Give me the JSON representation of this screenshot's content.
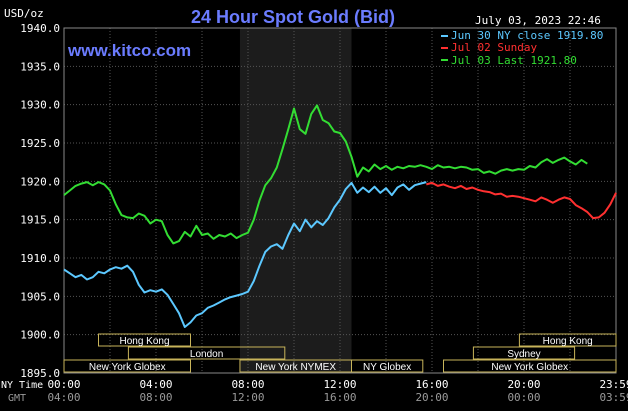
{
  "site_url": "www.kitco.com",
  "chart_data": {
    "type": "line",
    "title": "24 Hour Spot Gold (Bid)",
    "timestamp": "July 03, 2023 22:46",
    "y_unit_label": "USD/oz",
    "ylim": [
      1895.0,
      1940.0
    ],
    "y_ticks": [
      "1940.0",
      "1935.0",
      "1930.0",
      "1925.0",
      "1920.0",
      "1915.0",
      "1910.0",
      "1905.0",
      "1900.0",
      "1895.0"
    ],
    "x_range_hours": [
      0,
      24
    ],
    "x_row_labels": {
      "primary": "NY Time",
      "secondary": "GMT"
    },
    "x_ticks": [
      {
        "hour": 0,
        "ny": "00:00",
        "gmt": "04:00"
      },
      {
        "hour": 4,
        "ny": "04:00",
        "gmt": "08:00"
      },
      {
        "hour": 8,
        "ny": "08:00",
        "gmt": "12:00"
      },
      {
        "hour": 12,
        "ny": "12:00",
        "gmt": "16:00"
      },
      {
        "hour": 16,
        "ny": "16:00",
        "gmt": "20:00"
      },
      {
        "hour": 20,
        "ny": "20:00",
        "gmt": "00:00"
      },
      {
        "hour": 24,
        "ny": "23:59",
        "gmt": "03:59"
      }
    ],
    "grid": true,
    "legend_position": "top-right",
    "highlight_band_hours": [
      7.65,
      12.5
    ],
    "series": [
      {
        "name": "Jun 30 NY close 1919.80",
        "color": "#5cc8ff",
        "points": [
          [
            0,
            1908.5
          ],
          [
            0.25,
            1908.0
          ],
          [
            0.5,
            1907.5
          ],
          [
            0.75,
            1907.8
          ],
          [
            1.0,
            1907.2
          ],
          [
            1.25,
            1907.5
          ],
          [
            1.5,
            1908.2
          ],
          [
            1.75,
            1908.0
          ],
          [
            2.0,
            1908.5
          ],
          [
            2.25,
            1908.8
          ],
          [
            2.5,
            1908.6
          ],
          [
            2.75,
            1909.0
          ],
          [
            3.0,
            1908.2
          ],
          [
            3.25,
            1906.5
          ],
          [
            3.5,
            1905.5
          ],
          [
            3.75,
            1905.8
          ],
          [
            4.0,
            1905.6
          ],
          [
            4.25,
            1905.9
          ],
          [
            4.5,
            1905.2
          ],
          [
            4.75,
            1904.0
          ],
          [
            5.0,
            1902.8
          ],
          [
            5.25,
            1901.0
          ],
          [
            5.5,
            1901.6
          ],
          [
            5.75,
            1902.5
          ],
          [
            6.0,
            1902.8
          ],
          [
            6.25,
            1903.5
          ],
          [
            6.5,
            1903.8
          ],
          [
            6.75,
            1904.2
          ],
          [
            7.0,
            1904.6
          ],
          [
            7.25,
            1904.9
          ],
          [
            7.5,
            1905.1
          ],
          [
            7.75,
            1905.3
          ],
          [
            8.0,
            1905.6
          ],
          [
            8.25,
            1907.0
          ],
          [
            8.5,
            1909.0
          ],
          [
            8.75,
            1910.8
          ],
          [
            9.0,
            1911.5
          ],
          [
            9.25,
            1911.8
          ],
          [
            9.5,
            1911.2
          ],
          [
            9.75,
            1913.0
          ],
          [
            10.0,
            1914.5
          ],
          [
            10.25,
            1913.5
          ],
          [
            10.5,
            1915.0
          ],
          [
            10.75,
            1914.0
          ],
          [
            11.0,
            1914.8
          ],
          [
            11.25,
            1914.3
          ],
          [
            11.5,
            1915.2
          ],
          [
            11.75,
            1916.6
          ],
          [
            12.0,
            1917.6
          ],
          [
            12.25,
            1919.0
          ],
          [
            12.5,
            1919.8
          ],
          [
            12.75,
            1918.5
          ],
          [
            13.0,
            1919.2
          ],
          [
            13.25,
            1918.6
          ],
          [
            13.5,
            1919.3
          ],
          [
            13.75,
            1918.5
          ],
          [
            14.0,
            1919.1
          ],
          [
            14.25,
            1918.2
          ],
          [
            14.5,
            1919.2
          ],
          [
            14.75,
            1919.6
          ],
          [
            15.0,
            1918.9
          ],
          [
            15.25,
            1919.5
          ],
          [
            15.5,
            1919.7
          ],
          [
            15.75,
            1919.9
          ]
        ]
      },
      {
        "name": "Jul 02 Sunday",
        "color": "#ff3030",
        "points": [
          [
            15.75,
            1919.6
          ],
          [
            16.0,
            1919.8
          ],
          [
            16.25,
            1919.4
          ],
          [
            16.5,
            1919.6
          ],
          [
            16.75,
            1919.3
          ],
          [
            17.0,
            1919.1
          ],
          [
            17.25,
            1919.4
          ],
          [
            17.5,
            1919.0
          ],
          [
            17.75,
            1919.2
          ],
          [
            18.0,
            1918.9
          ],
          [
            18.25,
            1918.7
          ],
          [
            18.5,
            1918.6
          ],
          [
            18.75,
            1918.3
          ],
          [
            19.0,
            1918.4
          ],
          [
            19.25,
            1918.0
          ],
          [
            19.5,
            1918.1
          ],
          [
            19.75,
            1918.0
          ],
          [
            20.0,
            1917.8
          ],
          [
            20.25,
            1917.6
          ],
          [
            20.5,
            1917.4
          ],
          [
            20.75,
            1917.9
          ],
          [
            21.0,
            1917.6
          ],
          [
            21.25,
            1917.2
          ],
          [
            21.5,
            1917.6
          ],
          [
            21.75,
            1917.9
          ],
          [
            22.0,
            1917.7
          ],
          [
            22.25,
            1916.9
          ],
          [
            22.5,
            1916.5
          ],
          [
            22.75,
            1916.0
          ],
          [
            23.0,
            1915.2
          ],
          [
            23.25,
            1915.3
          ],
          [
            23.5,
            1915.9
          ],
          [
            23.75,
            1917.0
          ],
          [
            24.0,
            1918.5
          ]
        ]
      },
      {
        "name": "Jul 03 Last 1921.80",
        "color": "#33dd33",
        "points": [
          [
            0,
            1918.2
          ],
          [
            0.25,
            1918.8
          ],
          [
            0.5,
            1919.4
          ],
          [
            0.75,
            1919.7
          ],
          [
            1.0,
            1919.9
          ],
          [
            1.25,
            1919.5
          ],
          [
            1.5,
            1919.9
          ],
          [
            1.75,
            1919.6
          ],
          [
            2.0,
            1918.8
          ],
          [
            2.25,
            1917.0
          ],
          [
            2.5,
            1915.6
          ],
          [
            2.75,
            1915.3
          ],
          [
            3.0,
            1915.2
          ],
          [
            3.25,
            1915.8
          ],
          [
            3.5,
            1915.5
          ],
          [
            3.75,
            1914.5
          ],
          [
            4.0,
            1915.0
          ],
          [
            4.25,
            1914.8
          ],
          [
            4.5,
            1913.0
          ],
          [
            4.75,
            1911.9
          ],
          [
            5.0,
            1912.2
          ],
          [
            5.25,
            1913.4
          ],
          [
            5.5,
            1912.8
          ],
          [
            5.75,
            1914.2
          ],
          [
            6.0,
            1913.0
          ],
          [
            6.25,
            1913.2
          ],
          [
            6.5,
            1912.5
          ],
          [
            6.75,
            1913.0
          ],
          [
            7.0,
            1912.8
          ],
          [
            7.25,
            1913.2
          ],
          [
            7.5,
            1912.6
          ],
          [
            7.75,
            1913.0
          ],
          [
            8.0,
            1913.3
          ],
          [
            8.25,
            1915.0
          ],
          [
            8.5,
            1917.5
          ],
          [
            8.75,
            1919.5
          ],
          [
            9.0,
            1920.4
          ],
          [
            9.25,
            1921.8
          ],
          [
            9.5,
            1924.2
          ],
          [
            9.75,
            1926.8
          ],
          [
            10.0,
            1929.5
          ],
          [
            10.25,
            1926.8
          ],
          [
            10.5,
            1926.2
          ],
          [
            10.75,
            1928.8
          ],
          [
            11.0,
            1929.9
          ],
          [
            11.25,
            1928.0
          ],
          [
            11.5,
            1927.6
          ],
          [
            11.75,
            1926.5
          ],
          [
            12.0,
            1926.3
          ],
          [
            12.25,
            1925.2
          ],
          [
            12.5,
            1923.2
          ],
          [
            12.75,
            1920.6
          ],
          [
            13.0,
            1921.8
          ],
          [
            13.25,
            1921.3
          ],
          [
            13.5,
            1922.2
          ],
          [
            13.75,
            1921.6
          ],
          [
            14.0,
            1922.0
          ],
          [
            14.25,
            1921.5
          ],
          [
            14.5,
            1921.9
          ],
          [
            14.75,
            1921.7
          ],
          [
            15.0,
            1922.0
          ],
          [
            15.25,
            1921.9
          ],
          [
            15.5,
            1922.1
          ],
          [
            15.75,
            1921.9
          ],
          [
            16.0,
            1921.6
          ],
          [
            16.25,
            1922.1
          ],
          [
            16.5,
            1921.8
          ],
          [
            16.75,
            1921.9
          ],
          [
            17.0,
            1921.7
          ],
          [
            17.25,
            1921.9
          ],
          [
            17.5,
            1921.8
          ],
          [
            17.75,
            1921.5
          ],
          [
            18.0,
            1921.6
          ],
          [
            18.25,
            1921.1
          ],
          [
            18.5,
            1921.3
          ],
          [
            18.75,
            1921.0
          ],
          [
            19.0,
            1921.4
          ],
          [
            19.25,
            1921.6
          ],
          [
            19.5,
            1921.4
          ],
          [
            19.75,
            1921.6
          ],
          [
            20.0,
            1921.5
          ],
          [
            20.25,
            1922.0
          ],
          [
            20.5,
            1921.8
          ],
          [
            20.75,
            1922.5
          ],
          [
            21.0,
            1922.9
          ],
          [
            21.25,
            1922.4
          ],
          [
            21.5,
            1922.8
          ],
          [
            21.75,
            1923.1
          ],
          [
            22.0,
            1922.6
          ],
          [
            22.25,
            1922.2
          ],
          [
            22.5,
            1922.8
          ],
          [
            22.75,
            1922.3
          ]
        ]
      }
    ],
    "session_bars": [
      {
        "label": "Hong Kong",
        "row": 1,
        "start": 1.5,
        "end": 5.5
      },
      {
        "label": "London",
        "row": 2,
        "start": 2.8,
        "end": 9.6
      },
      {
        "label": "New York Globex",
        "row": 3,
        "start": 0,
        "end": 5.5
      },
      {
        "label": "New York NYMEX",
        "row": 3,
        "start": 7.65,
        "end": 12.5
      },
      {
        "label": "NY Globex",
        "row": 3,
        "start": 12.5,
        "end": 15.6
      },
      {
        "label": "Hong Kong",
        "row": 1,
        "start": 19.8,
        "end": 24
      },
      {
        "label": "Sydney",
        "row": 2,
        "start": 17.8,
        "end": 22.2
      },
      {
        "label": "New York Globex",
        "row": 3,
        "start": 16.5,
        "end": 24
      }
    ]
  }
}
